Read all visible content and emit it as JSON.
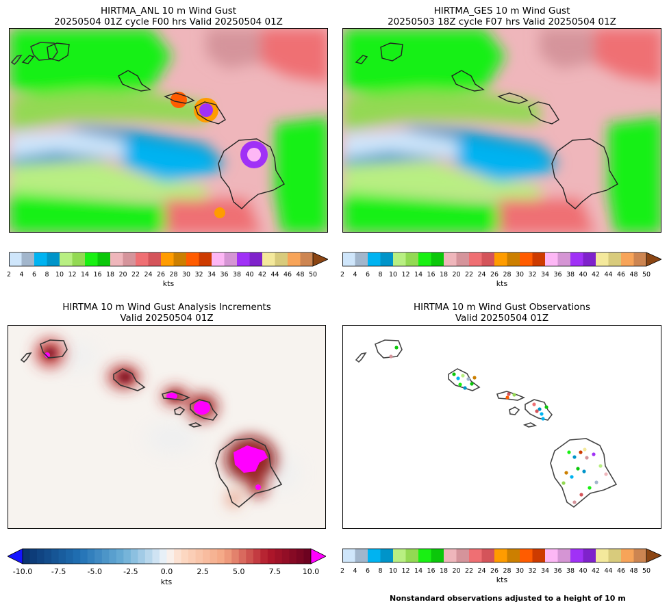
{
  "panels": {
    "anl": {
      "title1": "HIRTMA_ANL 10 m Wind Gust",
      "title2": "20250504 01Z cycle F00 hrs Valid 20250504 01Z"
    },
    "ges": {
      "title1": "HIRTMA_GES 10 m Wind Gust",
      "title2": "20250503 18Z cycle F07 hrs Valid 20250504 01Z"
    },
    "inc": {
      "title1": "HIRTMA 10 m Wind Gust Analysis Increments",
      "title2": "Valid 20250504 01Z"
    },
    "obs": {
      "title1": "HIRTMA 10 m Wind Gust Observations",
      "title2": "Valid 20250504 01Z"
    }
  },
  "gust_colorbar": {
    "units": "kts",
    "ticks": [
      "2",
      "4",
      "6",
      "8",
      "10",
      "12",
      "14",
      "16",
      "18",
      "20",
      "22",
      "24",
      "26",
      "28",
      "30",
      "32",
      "34",
      "36",
      "38",
      "40",
      "42",
      "44",
      "46",
      "48",
      "50"
    ],
    "colors": [
      "#cfe6fb",
      "#a2b6cc",
      "#00b3f1",
      "#0094c9",
      "#b8ef82",
      "#93d953",
      "#19f013",
      "#0bc70a",
      "#efb6bb",
      "#d5949b",
      "#ef6f73",
      "#d4545a",
      "#ff9c00",
      "#cc7f00",
      "#ff5c00",
      "#cd3b00",
      "#fdb7f5",
      "#d595d4",
      "#a031f6",
      "#7f22cb",
      "#f4e99c",
      "#d8cb7c",
      "#f7a459",
      "#cd8551"
    ],
    "extend_color": "#8b4513"
  },
  "increment_colorbar": {
    "units": "kts",
    "ticks": [
      "-10.0",
      "-7.5",
      "-5.0",
      "-2.5",
      "0.0",
      "2.5",
      "5.0",
      "7.5",
      "10.0"
    ],
    "under_color": "#1414ff",
    "over_color": "#ff00ff"
  },
  "footnote": "Nonstandard observations adjusted to a height of 10 m"
}
